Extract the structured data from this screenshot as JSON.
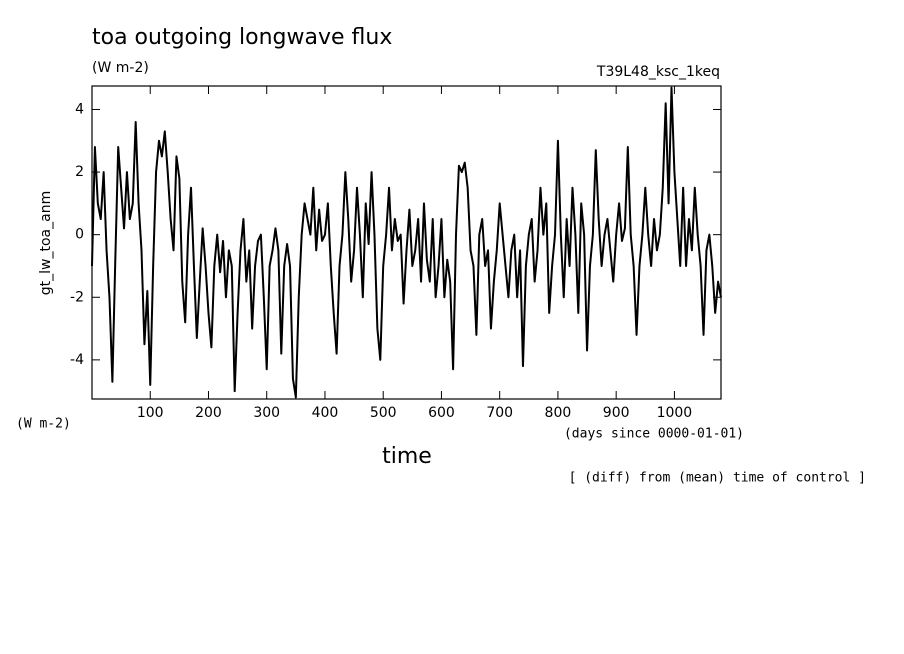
{
  "chart_data": {
    "type": "line",
    "title": "toa outgoing longwave flux",
    "subtitle": "(W m-2)",
    "run_label": "T39L48_ksc_1keq",
    "ylabel": "gt_lw_toa_anm",
    "y_units": "(W m-2)",
    "xlabel": "time",
    "x_units": "(days since 0000-01-01)",
    "note": "[ (diff) from (mean) time of control ]",
    "color": "#000000",
    "xlim": [
      0,
      1080
    ],
    "ylim": [
      -5.25,
      4.75
    ],
    "xticks": [
      100,
      200,
      300,
      400,
      500,
      600,
      700,
      800,
      900,
      1000
    ],
    "yticks": [
      -4,
      -2,
      0,
      2,
      4
    ],
    "x": [
      0,
      5,
      10,
      15,
      20,
      25,
      30,
      35,
      40,
      45,
      50,
      55,
      60,
      65,
      70,
      75,
      80,
      85,
      90,
      95,
      100,
      105,
      110,
      115,
      120,
      125,
      130,
      135,
      140,
      145,
      150,
      155,
      160,
      165,
      170,
      175,
      180,
      185,
      190,
      195,
      200,
      205,
      210,
      215,
      220,
      225,
      230,
      235,
      240,
      245,
      250,
      255,
      260,
      265,
      270,
      275,
      280,
      285,
      290,
      295,
      300,
      305,
      310,
      315,
      320,
      325,
      330,
      335,
      340,
      345,
      350,
      355,
      360,
      365,
      370,
      375,
      380,
      385,
      390,
      395,
      400,
      405,
      410,
      415,
      420,
      425,
      430,
      435,
      440,
      445,
      450,
      455,
      460,
      465,
      470,
      475,
      480,
      485,
      490,
      495,
      500,
      505,
      510,
      515,
      520,
      525,
      530,
      535,
      540,
      545,
      550,
      555,
      560,
      565,
      570,
      575,
      580,
      585,
      590,
      595,
      600,
      605,
      610,
      615,
      620,
      625,
      630,
      635,
      640,
      645,
      650,
      655,
      660,
      665,
      670,
      675,
      680,
      685,
      690,
      695,
      700,
      705,
      710,
      715,
      720,
      725,
      730,
      735,
      740,
      745,
      750,
      755,
      760,
      765,
      770,
      775,
      780,
      785,
      790,
      795,
      800,
      805,
      810,
      815,
      820,
      825,
      830,
      835,
      840,
      845,
      850,
      855,
      860,
      865,
      870,
      875,
      880,
      885,
      890,
      895,
      900,
      905,
      910,
      915,
      920,
      925,
      930,
      935,
      940,
      945,
      950,
      955,
      960,
      965,
      970,
      975,
      980,
      985,
      990,
      995,
      1000,
      1005,
      1010,
      1015,
      1020,
      1025,
      1030,
      1035,
      1040,
      1045,
      1050,
      1055,
      1060,
      1065,
      1070,
      1075,
      1080
    ],
    "values": [
      -1,
      2.8,
      1,
      0.5,
      2,
      -0.5,
      -2,
      -4.7,
      -0.8,
      2.8,
      1.5,
      0.2,
      2,
      0.5,
      1,
      3.6,
      1,
      -0.5,
      -3.5,
      -1.8,
      -4.8,
      -1,
      2,
      3,
      2.5,
      3.3,
      2,
      0.5,
      -0.5,
      2.5,
      1.8,
      -1.5,
      -2.8,
      0,
      1.5,
      -1,
      -3.3,
      -1.5,
      0.2,
      -1,
      -2.5,
      -3.6,
      -1,
      0,
      -1.2,
      -0.2,
      -2,
      -0.5,
      -1,
      -5,
      -2.5,
      -0.5,
      0.5,
      -1.5,
      -0.5,
      -3,
      -1,
      -0.2,
      0,
      -2,
      -4.3,
      -1,
      -0.5,
      0.2,
      -0.5,
      -3.8,
      -1,
      -0.3,
      -1,
      -4.6,
      -5.2,
      -2,
      0,
      1,
      0.5,
      0,
      1.5,
      -0.5,
      0.8,
      -0.2,
      0,
      1,
      -1,
      -2.5,
      -3.8,
      -1,
      0,
      2,
      0.5,
      -1.5,
      -0.5,
      1.5,
      0,
      -2,
      1,
      -0.3,
      2,
      0,
      -3,
      -4,
      -1,
      0,
      1.5,
      -0.5,
      0.5,
      -0.2,
      0,
      -2.2,
      -0.5,
      0.8,
      -1,
      -0.5,
      0.5,
      -1.5,
      1,
      -0.8,
      -1.5,
      0.5,
      -2,
      -1,
      0.5,
      -2,
      -0.8,
      -1.5,
      -4.3,
      0,
      2.2,
      2,
      2.3,
      1.5,
      -0.5,
      -1,
      -3.2,
      0,
      0.5,
      -1,
      -0.5,
      -3,
      -1.5,
      -0.5,
      1,
      0,
      -1,
      -2,
      -0.5,
      0,
      -2,
      -0.5,
      -4.2,
      -1,
      0,
      0.5,
      -1.5,
      -0.5,
      1.5,
      0,
      1,
      -2.5,
      -1,
      0,
      3,
      0,
      -2,
      0.5,
      -1,
      1.5,
      0,
      -2.5,
      1,
      0,
      -3.7,
      -1,
      0,
      2.7,
      0.5,
      -1,
      0,
      0.5,
      -0.5,
      -1.5,
      0,
      1,
      -0.2,
      0.2,
      2.8,
      0,
      -1,
      -3.2,
      -1,
      0,
      1.5,
      0,
      -1,
      0.5,
      -0.5,
      0,
      1.5,
      4.2,
      1,
      4.7,
      2,
      0.5,
      -1,
      1.5,
      -1,
      0.5,
      -0.5,
      1.5,
      0,
      -1,
      -3.2,
      -0.5,
      0,
      -1,
      -2.5,
      -1.5,
      -2
    ]
  }
}
